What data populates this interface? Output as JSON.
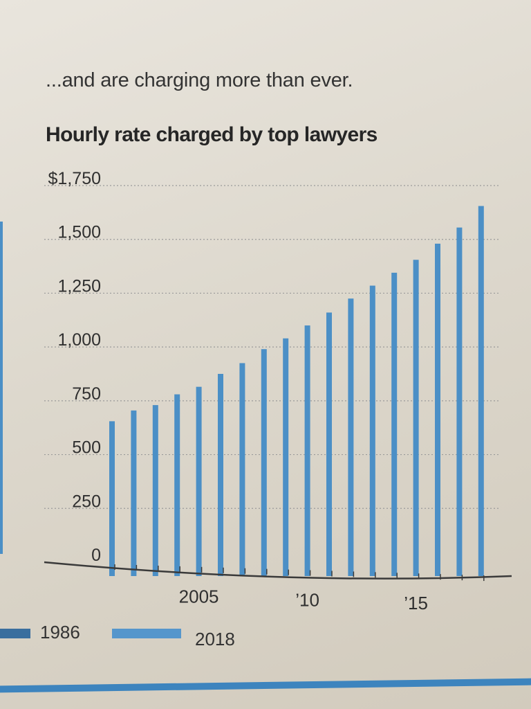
{
  "header": {
    "subtitle": "...and are charging more than ever.",
    "title": "Hourly rate charged by top lawyers"
  },
  "colors": {
    "bar": "#4b8fc6",
    "bar_1986": "#3a6f9e",
    "bar_2018": "#5596cc",
    "axis": "#3a3a3a",
    "grid": "#9a9a9a"
  },
  "legend": {
    "items": [
      {
        "label": "1986"
      },
      {
        "label": "2018"
      }
    ]
  },
  "chart_data": {
    "type": "bar",
    "title": "Hourly rate charged by top lawyers",
    "xlabel": "",
    "ylabel": "",
    "x": [
      2001,
      2002,
      2003,
      2004,
      2005,
      2006,
      2007,
      2008,
      2009,
      2010,
      2011,
      2012,
      2013,
      2014,
      2015,
      2016,
      2017,
      2018
    ],
    "values": [
      655,
      705,
      730,
      780,
      815,
      875,
      925,
      990,
      1040,
      1100,
      1160,
      1225,
      1285,
      1345,
      1405,
      1480,
      1555,
      1655
    ],
    "ylim": [
      0,
      1750
    ],
    "yticks": [
      {
        "value": 0,
        "label": "0"
      },
      {
        "value": 250,
        "label": "250"
      },
      {
        "value": 500,
        "label": "500"
      },
      {
        "value": 750,
        "label": "750"
      },
      {
        "value": 1000,
        "label": "1,000"
      },
      {
        "value": 1250,
        "label": "1,250"
      },
      {
        "value": 1500,
        "label": "1,500"
      },
      {
        "value": 1750,
        "label": "$1,750"
      }
    ],
    "xticks": [
      {
        "value": 2005,
        "label": "2005"
      },
      {
        "value": 2010,
        "label": "’10"
      },
      {
        "value": 2015,
        "label": "’15"
      }
    ],
    "grid": true
  }
}
